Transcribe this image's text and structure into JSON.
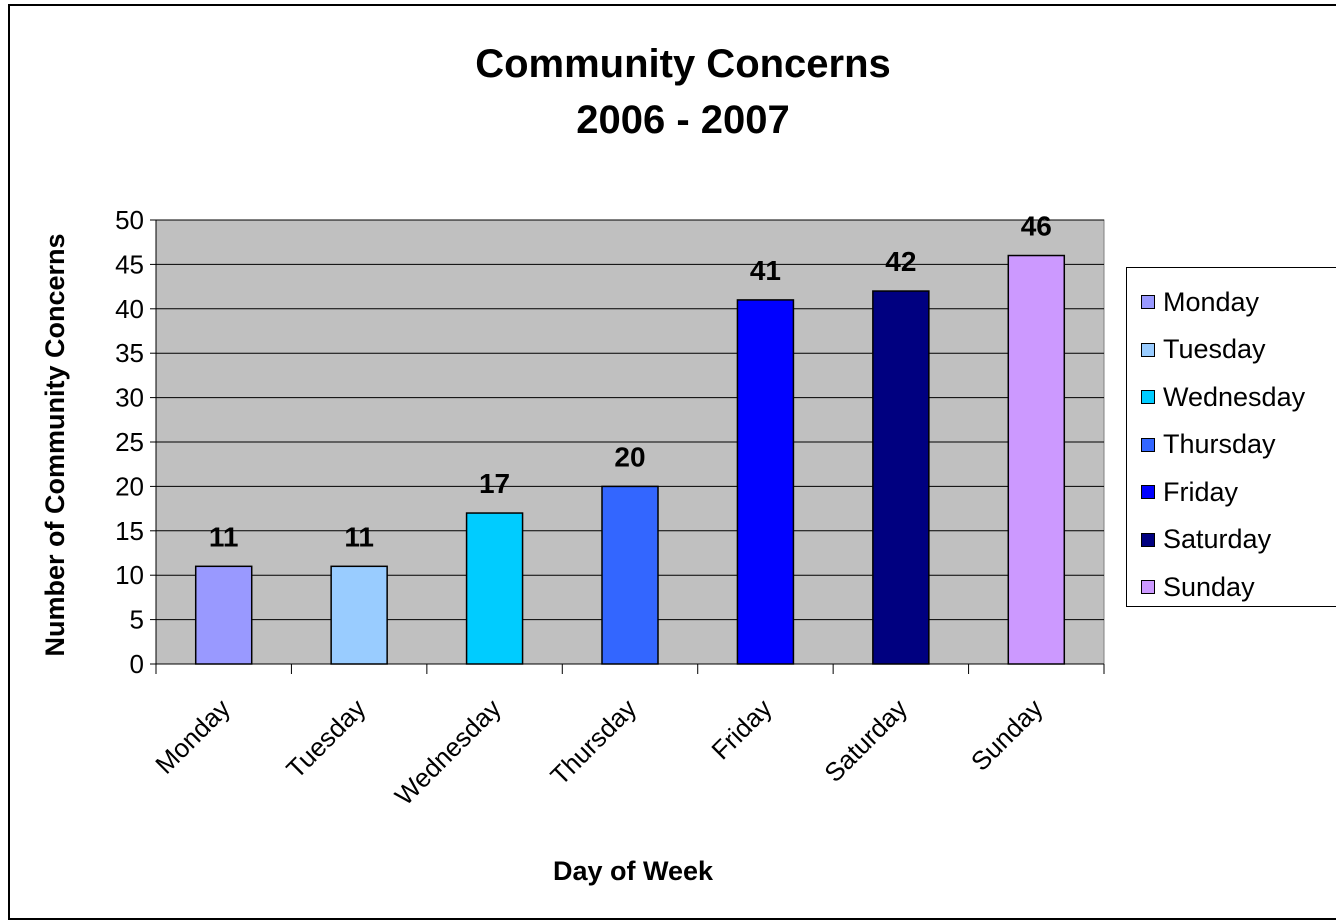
{
  "chart_data": {
    "type": "bar",
    "title": [
      "Community Concerns",
      "2006 - 2007"
    ],
    "xlabel": "Day of Week",
    "ylabel": "Number of Community Concerns",
    "ylim": [
      0,
      50
    ],
    "yticks": [
      0,
      5,
      10,
      15,
      20,
      25,
      30,
      35,
      40,
      45,
      50
    ],
    "categories": [
      "Monday",
      "Tuesday",
      "Wednesday",
      "Thursday",
      "Friday",
      "Saturday",
      "Sunday"
    ],
    "values": [
      11,
      11,
      17,
      20,
      41,
      42,
      46
    ],
    "colors": [
      "#9999ff",
      "#99ccff",
      "#00ccff",
      "#3366ff",
      "#0000ff",
      "#000080",
      "#cc99ff"
    ],
    "plot_background": "#c0c0c0",
    "grid": true,
    "data_labels": true,
    "legend": "right"
  }
}
